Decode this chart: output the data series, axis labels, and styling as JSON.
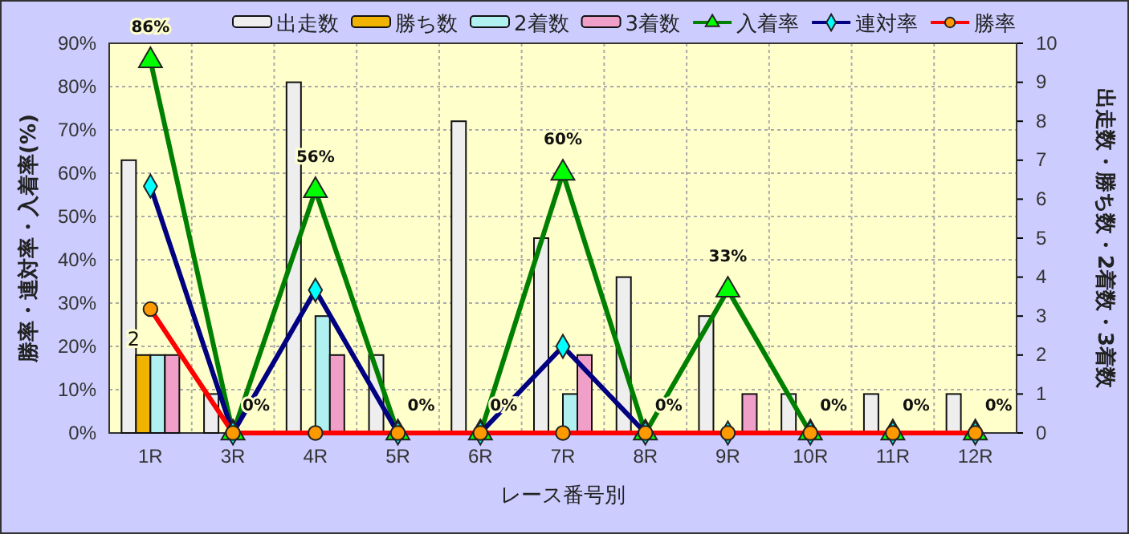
{
  "chart_data": {
    "type": "bar",
    "xlabel": "レース番号別",
    "ylabel": "勝率・連対率・入着率(%)",
    "y2label": "出走数・勝ち数・2着数・3着数",
    "categories": [
      "1R",
      "3R",
      "4R",
      "5R",
      "6R",
      "7R",
      "8R",
      "9R",
      "10R",
      "11R",
      "12R"
    ],
    "series": [
      {
        "name": "出走数",
        "axis": "y2",
        "color": "#eeeeee",
        "values": [
          7,
          1,
          9,
          2,
          8,
          5,
          4,
          3,
          1,
          1,
          1
        ]
      },
      {
        "name": "勝ち数",
        "axis": "y2",
        "color": "#f0b400",
        "values": [
          2,
          0,
          0,
          0,
          0,
          0,
          0,
          0,
          0,
          0,
          0
        ],
        "value_labels": [
          "2",
          null,
          null,
          null,
          null,
          null,
          null,
          null,
          null,
          null,
          null
        ]
      },
      {
        "name": "2着数",
        "axis": "y2",
        "color": "#b0f0f0",
        "values": [
          2,
          0,
          3,
          0,
          0,
          1,
          0,
          0,
          0,
          0,
          0
        ]
      },
      {
        "name": "3着数",
        "axis": "y2",
        "color": "#f0a0c8",
        "values": [
          2,
          0,
          2,
          0,
          0,
          2,
          0,
          1,
          0,
          0,
          0
        ]
      },
      {
        "name": "入着率",
        "type": "line",
        "axis": "y",
        "color": "#008000",
        "marker": "triangle",
        "values": [
          86,
          0,
          56,
          0,
          0,
          60,
          0,
          33,
          0,
          0,
          0
        ],
        "value_labels": [
          "86%",
          "0%",
          "56%",
          "0%",
          "0%",
          "60%",
          "0%",
          "33%",
          "0%",
          "0%",
          "0%"
        ]
      },
      {
        "name": "連対率",
        "type": "line",
        "axis": "y",
        "color": "#000080",
        "marker": "diamond",
        "values": [
          57,
          0,
          33,
          0,
          0,
          20,
          0,
          0,
          0,
          0,
          0
        ]
      },
      {
        "name": "勝率",
        "type": "line",
        "axis": "y",
        "color": "#ff0000",
        "marker": "circle",
        "values": [
          28.6,
          0,
          0,
          0,
          0,
          0,
          0,
          0,
          0,
          0,
          0
        ]
      }
    ],
    "ylim": [
      0,
      90
    ],
    "yticks": [
      {
        "value": 0,
        "label": "0%"
      },
      {
        "value": 10,
        "label": "10%"
      },
      {
        "value": 20,
        "label": "20%"
      },
      {
        "value": 30,
        "label": "30%"
      },
      {
        "value": 40,
        "label": "40%"
      },
      {
        "value": 50,
        "label": "50%"
      },
      {
        "value": 60,
        "label": "60%"
      },
      {
        "value": 70,
        "label": "70%"
      },
      {
        "value": 80,
        "label": "80%"
      },
      {
        "value": 90,
        "label": "90%"
      }
    ],
    "y2lim": [
      0,
      10
    ],
    "y2ticks": [
      0,
      1,
      2,
      3,
      4,
      5,
      6,
      7,
      8,
      9,
      10
    ],
    "grid": true,
    "legend": "top"
  }
}
